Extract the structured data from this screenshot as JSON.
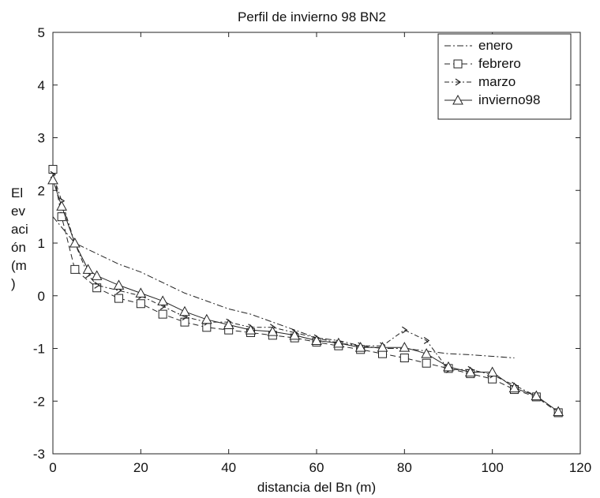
{
  "chart_data": {
    "type": "line",
    "title": "Perfil de invierno 98 BN2",
    "xlabel": "distancia del Bn (m)",
    "ylabel_lines": [
      "El",
      "ev",
      "aci",
      "ón",
      "(m",
      ")"
    ],
    "xlim": [
      0,
      120
    ],
    "ylim": [
      -3,
      5
    ],
    "xticks": [
      0,
      20,
      40,
      60,
      80,
      100,
      120
    ],
    "yticks": [
      -3,
      -2,
      -1,
      0,
      1,
      2,
      3,
      4,
      5
    ],
    "legend_position": "top-right",
    "series": [
      {
        "name": "enero",
        "marker": "none",
        "dash": "8 3 2 3",
        "x": [
          0,
          2,
          5,
          10,
          15,
          20,
          25,
          30,
          35,
          40,
          45,
          50,
          55,
          60,
          65,
          70,
          75,
          80,
          85,
          90,
          95,
          100,
          105
        ],
        "y": [
          1.5,
          1.3,
          1.0,
          0.8,
          0.6,
          0.45,
          0.25,
          0.05,
          -0.1,
          -0.25,
          -0.35,
          -0.5,
          -0.65,
          -0.8,
          -0.85,
          -0.95,
          -1.0,
          -1.0,
          -1.05,
          -1.1,
          -1.12,
          -1.15,
          -1.18
        ]
      },
      {
        "name": "febrero",
        "marker": "square",
        "dash": "7 4",
        "x": [
          0,
          2,
          5,
          10,
          15,
          20,
          25,
          30,
          35,
          40,
          45,
          50,
          55,
          60,
          65,
          70,
          75,
          80,
          85,
          90,
          95,
          100,
          105,
          110,
          115
        ],
        "y": [
          2.4,
          1.5,
          0.5,
          0.15,
          -0.05,
          -0.15,
          -0.35,
          -0.5,
          -0.6,
          -0.65,
          -0.7,
          -0.75,
          -0.8,
          -0.88,
          -0.95,
          -1.02,
          -1.1,
          -1.18,
          -1.28,
          -1.38,
          -1.48,
          -1.58,
          -1.78,
          -1.92,
          -2.22
        ]
      },
      {
        "name": "marzo",
        "marker": "arrow",
        "dash": "6 3 2 3",
        "x": [
          0,
          2,
          5,
          8,
          10,
          15,
          20,
          25,
          30,
          35,
          40,
          45,
          50,
          55,
          60,
          65,
          70,
          75,
          80,
          85,
          90,
          95,
          100,
          105,
          110
        ],
        "y": [
          2.3,
          1.8,
          1.0,
          0.4,
          0.2,
          0.1,
          0.0,
          -0.2,
          -0.4,
          -0.5,
          -0.5,
          -0.6,
          -0.6,
          -0.7,
          -0.8,
          -0.9,
          -0.95,
          -0.95,
          -0.65,
          -0.85,
          -1.4,
          -1.4,
          -1.5,
          -1.7,
          -1.9
        ]
      },
      {
        "name": "invierno98",
        "marker": "triangle",
        "dash": "",
        "x": [
          0,
          2,
          5,
          8,
          10,
          15,
          20,
          25,
          30,
          35,
          40,
          45,
          50,
          55,
          60,
          65,
          70,
          75,
          80,
          85,
          90,
          95,
          100,
          105,
          110,
          115
        ],
        "y": [
          2.2,
          1.7,
          1.0,
          0.5,
          0.38,
          0.2,
          0.05,
          -0.1,
          -0.3,
          -0.45,
          -0.55,
          -0.65,
          -0.68,
          -0.75,
          -0.85,
          -0.9,
          -0.98,
          -0.98,
          -0.98,
          -1.1,
          -1.35,
          -1.45,
          -1.45,
          -1.75,
          -1.9,
          -2.2
        ]
      }
    ]
  }
}
